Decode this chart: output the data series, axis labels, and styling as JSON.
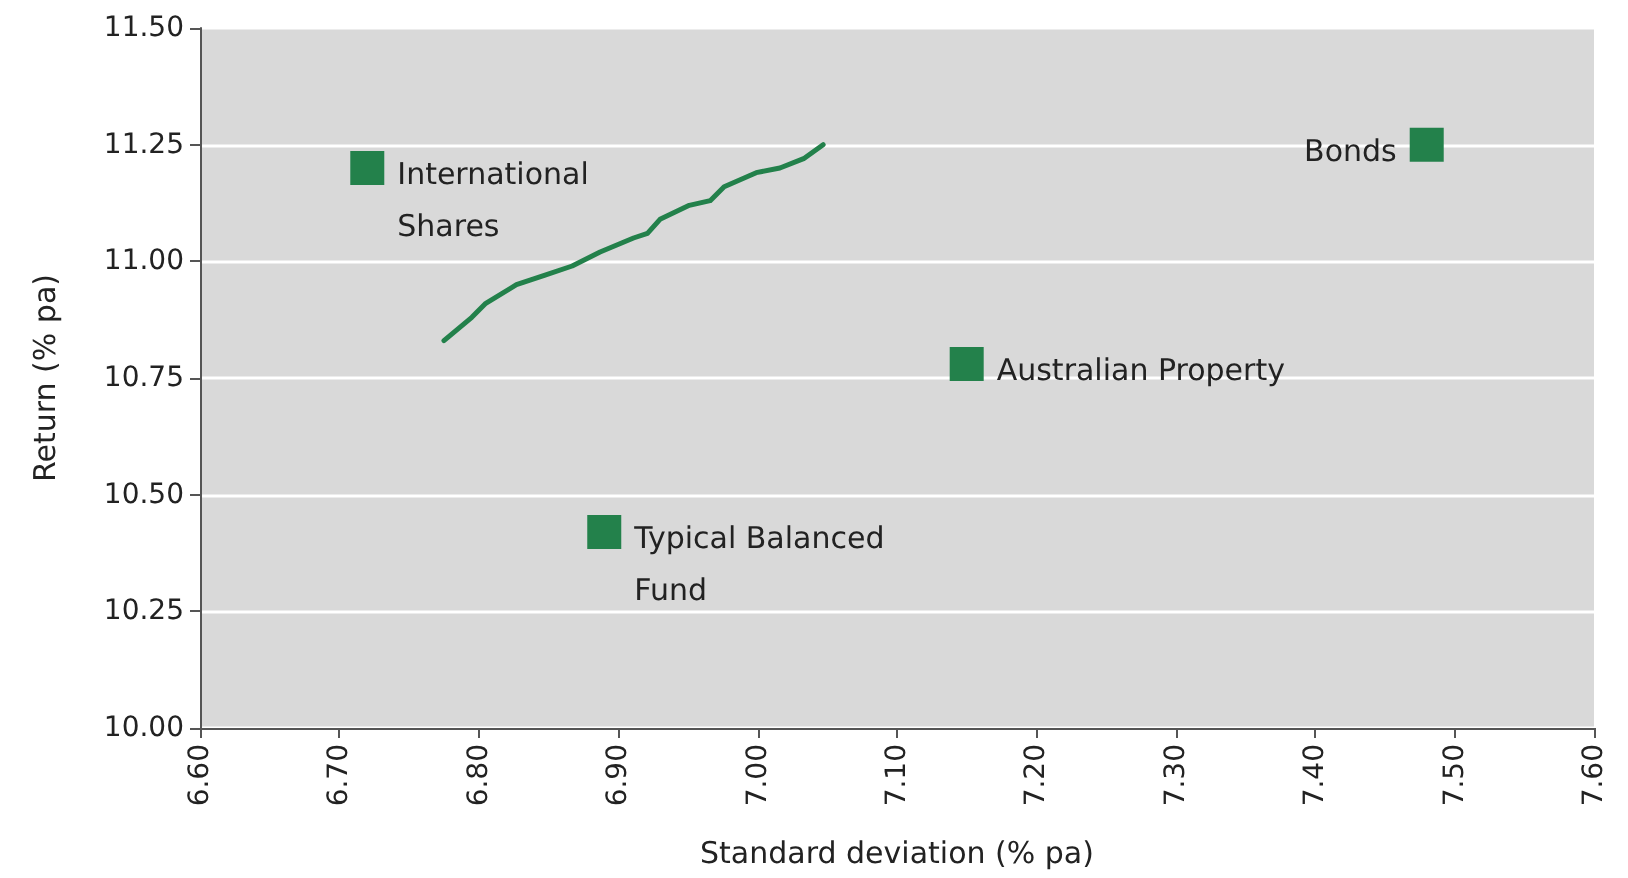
{
  "chart_data": {
    "type": "scatter",
    "xlabel": "Standard deviation (% pa)",
    "ylabel": "Return (% pa)",
    "xlim": [
      6.6,
      7.6
    ],
    "xticks": [
      {
        "value": 6.6,
        "label": "6.60"
      },
      {
        "value": 6.7,
        "label": "6.70"
      },
      {
        "value": 6.8,
        "label": "6.80"
      },
      {
        "value": 6.9,
        "label": "6.90"
      },
      {
        "value": 7.0,
        "label": "7.00"
      },
      {
        "value": 7.1,
        "label": "7.10"
      },
      {
        "value": 7.2,
        "label": "7.20"
      },
      {
        "value": 7.3,
        "label": "7.30"
      },
      {
        "value": 7.4,
        "label": "7.40"
      },
      {
        "value": 7.5,
        "label": "7.50"
      },
      {
        "value": 7.6,
        "label": "7.60"
      }
    ],
    "ylim": [
      10.0,
      11.5
    ],
    "yticks": [
      {
        "value": 10.0,
        "label": "10.00"
      },
      {
        "value": 10.25,
        "label": "10.25"
      },
      {
        "value": 10.5,
        "label": "10.50"
      },
      {
        "value": 10.75,
        "label": "10.75"
      },
      {
        "value": 11.0,
        "label": "11.00"
      },
      {
        "value": 11.25,
        "label": "11.25"
      },
      {
        "value": 11.5,
        "label": "11.50"
      }
    ],
    "grid": "y",
    "series": [
      {
        "marker": "square",
        "color": "#23814b",
        "x": [
          6.72,
          7.48,
          7.15,
          6.89
        ],
        "values": [
          11.2,
          11.25,
          10.78,
          10.42
        ]
      },
      {
        "type": "line",
        "marker": "none",
        "line_style": "solid",
        "color": "#23814b",
        "x": [
          6.775,
          6.795,
          6.805,
          6.827,
          6.847,
          6.867,
          6.887,
          6.911,
          6.921,
          6.93,
          6.951,
          6.966,
          6.976,
          6.999,
          7.016,
          7.033,
          7.047
        ],
        "values": [
          10.83,
          10.88,
          10.91,
          10.95,
          10.97,
          10.99,
          11.02,
          11.05,
          11.06,
          11.09,
          11.12,
          11.13,
          11.16,
          11.19,
          11.2,
          11.22,
          11.25
        ]
      }
    ],
    "annotations": [
      {
        "text": "International\nShares",
        "x": 6.72,
        "y": 11.2
      },
      {
        "text": "Bonds",
        "x": 7.48,
        "y": 11.25
      },
      {
        "text": "Australian Property",
        "x": 7.15,
        "y": 10.78
      },
      {
        "text": "Typical Balanced\nFund",
        "x": 6.89,
        "y": 10.42
      }
    ]
  }
}
